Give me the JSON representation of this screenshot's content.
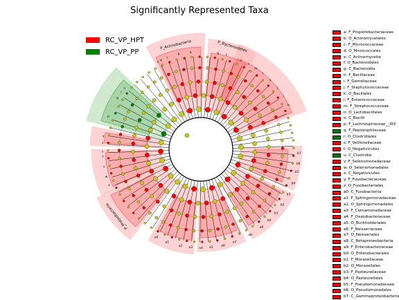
{
  "title": "Significantly Represented Taxa",
  "colors": {
    "hpt": "#ff0000",
    "pp": "#008000",
    "hpt_fill": "#ffb0b0",
    "pp_fill": "#a8d8a8",
    "node": "#c8c81e",
    "line": "#000000"
  },
  "legend": [
    {
      "label": "RC_VP_HPT",
      "color": "#ff0000"
    },
    {
      "label": "RC_VP_PP",
      "color": "#008000"
    }
  ],
  "keys": [
    {
      "text": "a: F_Propionibacteriaceae",
      "group": "hpt"
    },
    {
      "text": "b: O_Actinomycetales",
      "group": "hpt"
    },
    {
      "text": "c: F_Micrococcaceae",
      "group": "hpt"
    },
    {
      "text": "d: O_Micrococcales",
      "group": "hpt"
    },
    {
      "text": "e: C_Actinomycetia",
      "group": "hpt"
    },
    {
      "text": "f: O_Bacteroidales",
      "group": "hpt"
    },
    {
      "text": "g: C_Bacteroidia",
      "group": "hpt"
    },
    {
      "text": "h: F_Bacillaceae",
      "group": "hpt"
    },
    {
      "text": "i: F_Gemellaceae",
      "group": "hpt"
    },
    {
      "text": "j: F_Staphylococcaceae",
      "group": "hpt"
    },
    {
      "text": "k: O_Bacillales",
      "group": "hpt"
    },
    {
      "text": "l: F_Enterococcaceae",
      "group": "hpt"
    },
    {
      "text": "m: F_Streptococcaceae",
      "group": "hpt"
    },
    {
      "text": "n: O_Lactobacillales",
      "group": "hpt"
    },
    {
      "text": "o: C_Bacilli",
      "group": "hpt"
    },
    {
      "text": "p: F_Lachnospiraceae__XIV",
      "group": "hpt"
    },
    {
      "text": "q: F_Peptoniphilaceae",
      "group": "pp"
    },
    {
      "text": "r: O_Clostridiales",
      "group": "pp"
    },
    {
      "text": "s: F_Veillonellaceae",
      "group": "hpt"
    },
    {
      "text": "t: O_Negativicutes",
      "group": "hpt"
    },
    {
      "text": "u: C_Clostridia",
      "group": "pp"
    },
    {
      "text": "v: F_Selenomonadaceae",
      "group": "hpt"
    },
    {
      "text": "w: O_Selenomonadales",
      "group": "hpt"
    },
    {
      "text": "x: C_Negativicutes",
      "group": "hpt"
    },
    {
      "text": "y: F_Fusobacteriaceae",
      "group": "hpt"
    },
    {
      "text": "z: O_Fusobacteriales",
      "group": "hpt"
    },
    {
      "text": "a0: C_Fusobacteriia",
      "group": "hpt"
    },
    {
      "text": "a1: F_Sphingomonadaceae",
      "group": "hpt"
    },
    {
      "text": "a2: O_Sphingomonadales",
      "group": "hpt"
    },
    {
      "text": "a3: F_Comamonadaceae",
      "group": "hpt"
    },
    {
      "text": "a4: F_Oxalobacteraceae",
      "group": "hpt"
    },
    {
      "text": "a5: O_Burkholderiales",
      "group": "hpt"
    },
    {
      "text": "a6: F_Neisseriaceae",
      "group": "hpt"
    },
    {
      "text": "a7: O_Neisseriales",
      "group": "hpt"
    },
    {
      "text": "a8: C_Betaproteobacteria",
      "group": "hpt"
    },
    {
      "text": "a9: F_Enterobacteriaceae",
      "group": "hpt"
    },
    {
      "text": "b0: O_Enterobacterales",
      "group": "hpt"
    },
    {
      "text": "b1: F_Moraxellaceae",
      "group": "hpt"
    },
    {
      "text": "b2: O_Moraxellales",
      "group": "hpt"
    },
    {
      "text": "b3: F_Pasteurellaceae",
      "group": "hpt"
    },
    {
      "text": "b4: O_Pasteurellales",
      "group": "hpt"
    },
    {
      "text": "b5: F_Pseudomonadaceae",
      "group": "hpt"
    },
    {
      "text": "b6: O_Pseudomonadales",
      "group": "hpt"
    },
    {
      "text": "b7: C_Gammaproteobacteria",
      "group": "hpt"
    }
  ],
  "clades": [
    {
      "label": "P_Bacteroidetes",
      "group": "hpt",
      "start": 60,
      "end": 86
    },
    {
      "label": "P_Actinobacteria",
      "group": "hpt",
      "start": 89,
      "end": 118
    },
    {
      "label": "P_Proteobacteria",
      "group": "hpt",
      "start": 205,
      "end": 232
    }
  ],
  "clade_letters": [
    {
      "letter": "a",
      "group": "hpt",
      "angle": 96
    },
    {
      "letter": "b",
      "group": "hpt",
      "angle": 103
    },
    {
      "letter": "c",
      "group": "hpt",
      "angle": 110
    },
    {
      "letter": "d",
      "group": "hpt",
      "angle": 114
    },
    {
      "letter": "e",
      "group": "hpt",
      "angle": 116
    },
    {
      "letter": "f",
      "group": "hpt",
      "angle": 75
    },
    {
      "letter": "g",
      "group": "hpt",
      "angle": 80
    },
    {
      "letter": "h",
      "group": "hpt",
      "angle": 27
    },
    {
      "letter": "i",
      "group": "hpt",
      "angle": 33
    },
    {
      "letter": "j",
      "group": "hpt",
      "angle": 39
    },
    {
      "letter": "k",
      "group": "hpt",
      "angle": 45
    },
    {
      "letter": "l",
      "group": "hpt",
      "angle": 51
    },
    {
      "letter": "m",
      "group": "hpt",
      "angle": 56
    },
    {
      "letter": "n",
      "group": "hpt",
      "angle": 61
    },
    {
      "letter": "o",
      "group": "hpt",
      "angle": 66
    },
    {
      "letter": "p",
      "group": "hpt",
      "angle": 160
    },
    {
      "letter": "q",
      "group": "pp",
      "angle": 148
    },
    {
      "letter": "r",
      "group": "pp",
      "angle": 144
    },
    {
      "letter": "s",
      "group": "hpt",
      "angle": 181
    },
    {
      "letter": "t",
      "group": "hpt",
      "angle": 184
    },
    {
      "letter": "u",
      "group": "pp",
      "angle": 141
    },
    {
      "letter": "v",
      "group": "hpt",
      "angle": 190
    },
    {
      "letter": "w",
      "group": "hpt",
      "angle": 196
    },
    {
      "letter": "x",
      "group": "hpt",
      "angle": 201
    },
    {
      "letter": "y",
      "group": "hpt",
      "angle": 172
    },
    {
      "letter": "z",
      "group": "hpt",
      "angle": 176
    },
    {
      "letter": "a0",
      "group": "hpt",
      "angle": 243
    },
    {
      "letter": "a1",
      "group": "hpt",
      "angle": 250
    },
    {
      "letter": "a2",
      "group": "hpt",
      "angle": 258
    },
    {
      "letter": "a3",
      "group": "hpt",
      "angle": 264
    },
    {
      "letter": "a4",
      "group": "hpt",
      "angle": 270
    },
    {
      "letter": "a5",
      "group": "hpt",
      "angle": 276
    },
    {
      "letter": "a6",
      "group": "hpt",
      "angle": 283
    },
    {
      "letter": "a7",
      "group": "hpt",
      "angle": 290
    },
    {
      "letter": "a8",
      "group": "hpt",
      "angle": 300
    },
    {
      "letter": "a9",
      "group": "hpt",
      "angle": 308
    },
    {
      "letter": "b0",
      "group": "hpt",
      "angle": 314
    },
    {
      "letter": "b1",
      "group": "hpt",
      "angle": 320
    },
    {
      "letter": "b2",
      "group": "hpt",
      "angle": 326
    },
    {
      "letter": "b3",
      "group": "hpt",
      "angle": 333
    },
    {
      "letter": "b4",
      "group": "hpt",
      "angle": 340
    },
    {
      "letter": "b5",
      "group": "hpt",
      "angle": 347
    },
    {
      "letter": "b6",
      "group": "hpt",
      "angle": 352
    },
    {
      "letter": "b7",
      "group": "hpt",
      "angle": 358
    }
  ]
}
